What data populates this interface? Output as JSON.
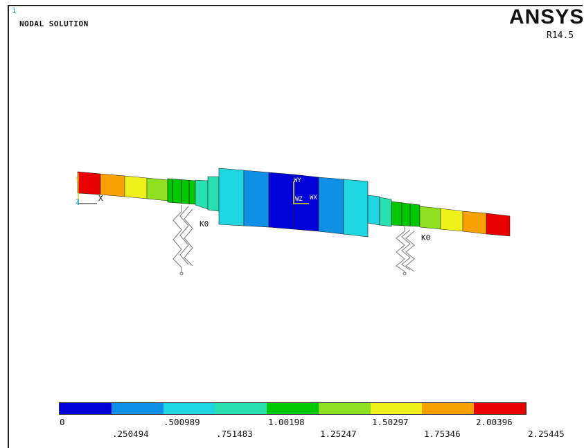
{
  "window_number": "1",
  "plot_title": "NODAL SOLUTION",
  "brand": "ANSYS",
  "version": "R14.5",
  "model_labels": {
    "axis_y": "Y",
    "axis_z": "Z",
    "axis_x": "X",
    "spring_left": "K0",
    "spring_right": "K0",
    "wy": "WY",
    "wz": "WZ",
    "wx": "WX"
  },
  "colors": {
    "c1": "#0000d8",
    "c2": "#0f8fe6",
    "c3": "#20d6e0",
    "c4": "#28e0b0",
    "c5": "#00c800",
    "c6": "#8ee020",
    "c7": "#f0f01c",
    "c8": "#f6a100",
    "c9": "#e80000"
  },
  "legend": {
    "upper_labels": [
      "0",
      ".500989",
      "1.00198",
      "1.50297",
      "2.00396"
    ],
    "lower_labels": [
      ".250494",
      ".751483",
      "1.25247",
      "1.75346",
      "2.25445"
    ]
  }
}
